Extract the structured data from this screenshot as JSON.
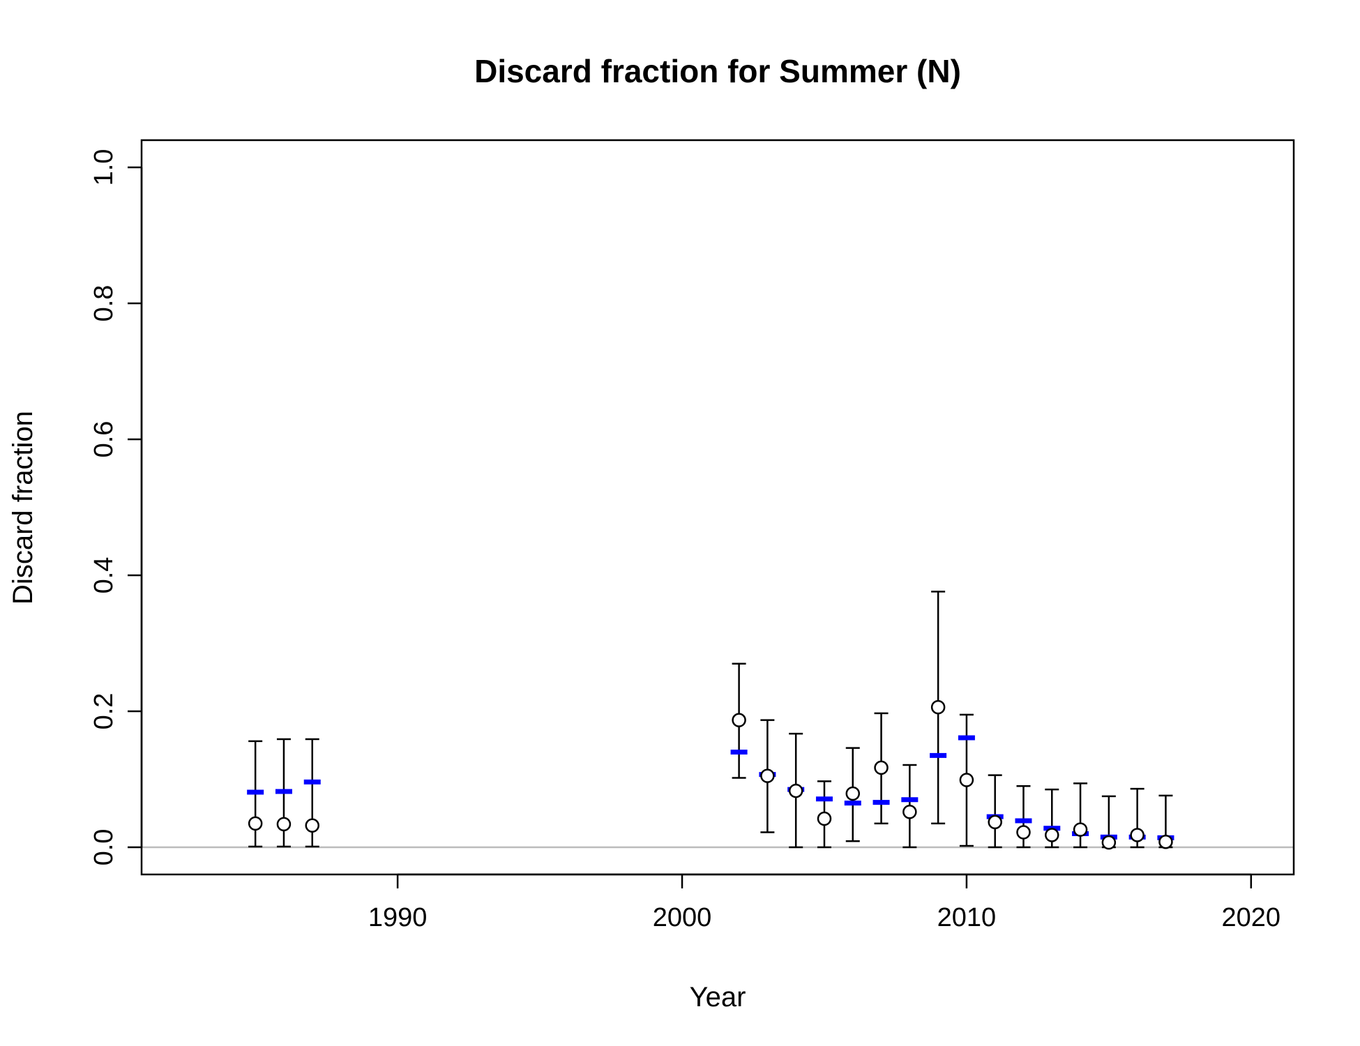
{
  "chart_data": {
    "type": "scatter",
    "title": "Discard fraction for Summer (N)",
    "xlabel": "Year",
    "ylabel": "Discard fraction",
    "xlim": [
      1981,
      2021.5
    ],
    "ylim": [
      -0.04,
      1.04
    ],
    "x_ticks": [
      1990,
      2000,
      2010,
      2020
    ],
    "y_ticks": [
      0.0,
      0.2,
      0.4,
      0.6,
      0.8,
      1.0
    ],
    "y_tick_labels": [
      "0.0",
      "0.2",
      "0.4",
      "0.6",
      "0.8",
      "1.0"
    ],
    "reference_line": {
      "y": 0.0,
      "color": "#bbbbbb"
    },
    "series": [
      {
        "name": "",
        "marker": "open-circle",
        "color": "#000000",
        "points": [
          {
            "x": 1985,
            "y": 0.035,
            "lo": 0.001,
            "hi": 0.156
          },
          {
            "x": 1986,
            "y": 0.034,
            "lo": 0.001,
            "hi": 0.159
          },
          {
            "x": 1987,
            "y": 0.032,
            "lo": 0.001,
            "hi": 0.159
          },
          {
            "x": 2002,
            "y": 0.187,
            "lo": 0.102,
            "hi": 0.27
          },
          {
            "x": 2003,
            "y": 0.105,
            "lo": 0.022,
            "hi": 0.187
          },
          {
            "x": 2004,
            "y": 0.083,
            "lo": 0.0,
            "hi": 0.167
          },
          {
            "x": 2005,
            "y": 0.042,
            "lo": 0.0,
            "hi": 0.097
          },
          {
            "x": 2006,
            "y": 0.079,
            "lo": 0.009,
            "hi": 0.146
          },
          {
            "x": 2007,
            "y": 0.117,
            "lo": 0.035,
            "hi": 0.197
          },
          {
            "x": 2008,
            "y": 0.052,
            "lo": 0.0,
            "hi": 0.121
          },
          {
            "x": 2009,
            "y": 0.206,
            "lo": 0.035,
            "hi": 0.376
          },
          {
            "x": 2010,
            "y": 0.099,
            "lo": 0.002,
            "hi": 0.195
          },
          {
            "x": 2011,
            "y": 0.037,
            "lo": 0.0,
            "hi": 0.106
          },
          {
            "x": 2012,
            "y": 0.022,
            "lo": 0.0,
            "hi": 0.09
          },
          {
            "x": 2013,
            "y": 0.018,
            "lo": 0.0,
            "hi": 0.085
          },
          {
            "x": 2014,
            "y": 0.026,
            "lo": 0.0,
            "hi": 0.094
          },
          {
            "x": 2015,
            "y": 0.007,
            "lo": 0.0,
            "hi": 0.075
          },
          {
            "x": 2016,
            "y": 0.018,
            "lo": 0.0,
            "hi": 0.086
          },
          {
            "x": 2017,
            "y": 0.008,
            "lo": 0.0,
            "hi": 0.076
          }
        ]
      },
      {
        "name": "",
        "marker": "horizontal-dash",
        "color": "#0000ff",
        "points": [
          {
            "x": 1985,
            "y": 0.081
          },
          {
            "x": 1986,
            "y": 0.082
          },
          {
            "x": 1987,
            "y": 0.096
          },
          {
            "x": 2002,
            "y": 0.14
          },
          {
            "x": 2003,
            "y": 0.107
          },
          {
            "x": 2004,
            "y": 0.085
          },
          {
            "x": 2005,
            "y": 0.071
          },
          {
            "x": 2006,
            "y": 0.065
          },
          {
            "x": 2007,
            "y": 0.066
          },
          {
            "x": 2008,
            "y": 0.07
          },
          {
            "x": 2009,
            "y": 0.135
          },
          {
            "x": 2010,
            "y": 0.161
          },
          {
            "x": 2011,
            "y": 0.045
          },
          {
            "x": 2012,
            "y": 0.039
          },
          {
            "x": 2013,
            "y": 0.028
          },
          {
            "x": 2014,
            "y": 0.02
          },
          {
            "x": 2015,
            "y": 0.015
          },
          {
            "x": 2016,
            "y": 0.015
          },
          {
            "x": 2017,
            "y": 0.014
          }
        ]
      }
    ]
  }
}
